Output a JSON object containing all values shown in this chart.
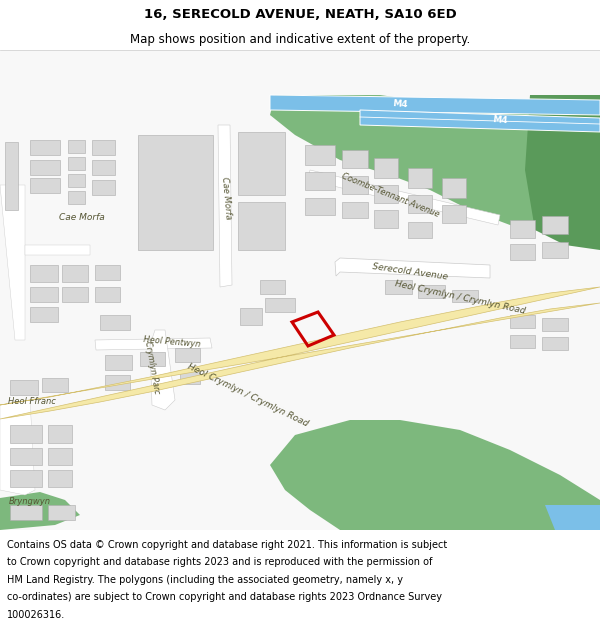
{
  "title": "16, SERECOLD AVENUE, NEATH, SA10 6ED",
  "subtitle": "Map shows position and indicative extent of the property.",
  "footer_lines": [
    "Contains OS data © Crown copyright and database right 2021. This information is subject",
    "to Crown copyright and database rights 2023 and is reproduced with the permission of",
    "HM Land Registry. The polygons (including the associated geometry, namely x, y",
    "co-ordinates) are subject to Crown copyright and database rights 2023 Ordnance Survey",
    "100026316."
  ],
  "map_bg": "#f5f5f5",
  "green_color": "#7db87d",
  "green_dark": "#5a9a5a",
  "blue_color": "#7bbfe8",
  "road_main_color": "#f5e9a8",
  "road_main_edge": "#d4c070",
  "road_minor_color": "#ffffff",
  "road_minor_edge": "#cccccc",
  "building_color": "#d8d8d8",
  "building_edge": "#aaaaaa",
  "plot_color": "#cc0000",
  "label_color": "#444444",
  "title_fontsize": 9.5,
  "subtitle_fontsize": 8.5,
  "footer_fontsize": 7.0,
  "map_label_fontsize": 6.5
}
